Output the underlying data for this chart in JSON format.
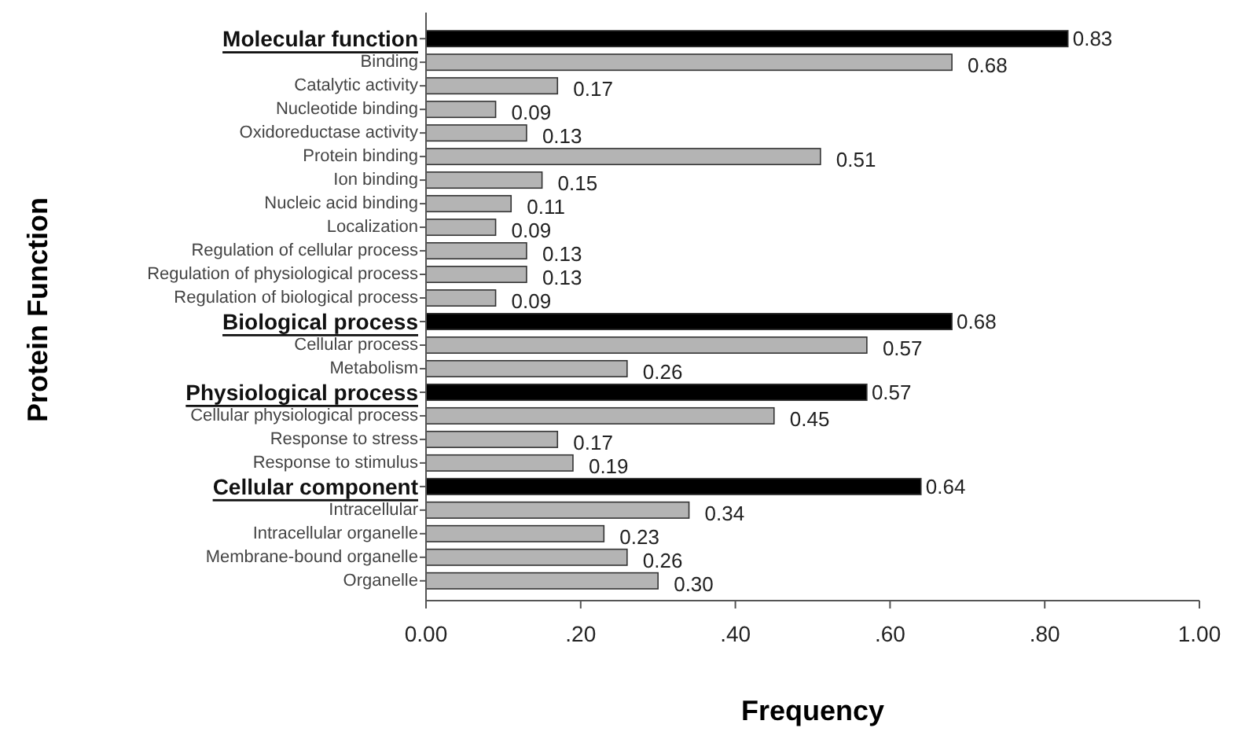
{
  "chart_data": {
    "type": "bar",
    "orientation": "horizontal",
    "xlabel": "Frequency",
    "ylabel": "Protein Function",
    "categories": [
      "Molecular function",
      "Binding",
      "Catalytic activity",
      "Nucleotide binding",
      "Oxidoreductase activity",
      "Protein binding",
      "Ion binding",
      "Nucleic acid binding",
      "Localization",
      "Regulation of cellular process",
      "Regulation of physiological process",
      "Regulation of biological process",
      "Biological process",
      "Cellular process",
      "Metabolism",
      "Physiological process",
      "Cellular physiological process",
      "Response to stress",
      "Response to stimulus",
      "Cellular component",
      "Intracellular",
      "Intracellular organelle",
      "Membrane-bound organelle",
      "Organelle"
    ],
    "values": [
      0.83,
      0.68,
      0.17,
      0.09,
      0.13,
      0.51,
      0.15,
      0.11,
      0.09,
      0.13,
      0.13,
      0.09,
      0.68,
      0.57,
      0.26,
      0.57,
      0.45,
      0.17,
      0.19,
      0.64,
      0.34,
      0.23,
      0.26,
      0.3
    ],
    "value_labels": [
      "0.83",
      "0.68",
      "0.17",
      "0.09",
      "0.13",
      "0.51",
      "0.15",
      "0.11",
      "0.09",
      "0.13",
      "0.13",
      "0.09",
      "0.68",
      "0.57",
      "0.26",
      "0.57",
      "0.45",
      "0.17",
      "0.19",
      "0.64",
      "0.34",
      "0.23",
      "0.26",
      "0.30"
    ],
    "colors": [
      "#000000",
      "#b4b4b4",
      "#b4b4b4",
      "#b4b4b4",
      "#b4b4b4",
      "#b4b4b4",
      "#b4b4b4",
      "#b4b4b4",
      "#b4b4b4",
      "#b4b4b4",
      "#b4b4b4",
      "#b4b4b4",
      "#000000",
      "#b4b4b4",
      "#b4b4b4",
      "#000000",
      "#b4b4b4",
      "#b4b4b4",
      "#b4b4b4",
      "#000000",
      "#b4b4b4",
      "#b4b4b4",
      "#b4b4b4",
      "#b4b4b4"
    ],
    "xlim": [
      0,
      1
    ],
    "xticks": [
      {
        "value": 0,
        "label": "0.00"
      },
      {
        "value": 0.2,
        "label": ".20"
      },
      {
        "value": 0.4,
        "label": ".40"
      },
      {
        "value": 0.6,
        "label": ".60"
      },
      {
        "value": 0.8,
        "label": ".80"
      },
      {
        "value": 1,
        "label": "1.00"
      }
    ],
    "grid": false
  }
}
